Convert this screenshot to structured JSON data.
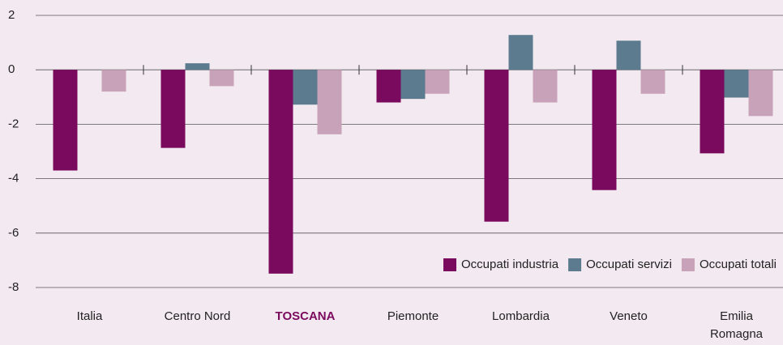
{
  "chart_data": {
    "type": "bar",
    "categories": [
      "Italia",
      "Centro Nord",
      "TOSCANA",
      "Piemonte",
      "Lombardia",
      "Veneto",
      "Emilia Romagna"
    ],
    "series": [
      {
        "name": "Occupati industria",
        "color": "#7a0a5e",
        "values": [
          -3.7,
          -2.87,
          -7.49,
          -1.2,
          -5.58,
          -4.42,
          -3.07
        ]
      },
      {
        "name": "Occupati servizi",
        "color": "#5c7b8f",
        "values": [
          0,
          0.24,
          -1.28,
          -1.07,
          1.28,
          1.07,
          -1.02
        ]
      },
      {
        "name": "Occupati totali",
        "color": "#c8a2b8",
        "values": [
          -0.8,
          -0.6,
          -2.37,
          -0.88,
          -1.2,
          -0.88,
          -1.7
        ]
      }
    ],
    "ylim": [
      -8,
      2
    ],
    "yticks": [
      2,
      0,
      -2,
      -4,
      -6,
      -8
    ],
    "grid": true,
    "legend": "lower right",
    "highlight_index": 2,
    "highlight_color": "#7a0a5e"
  }
}
